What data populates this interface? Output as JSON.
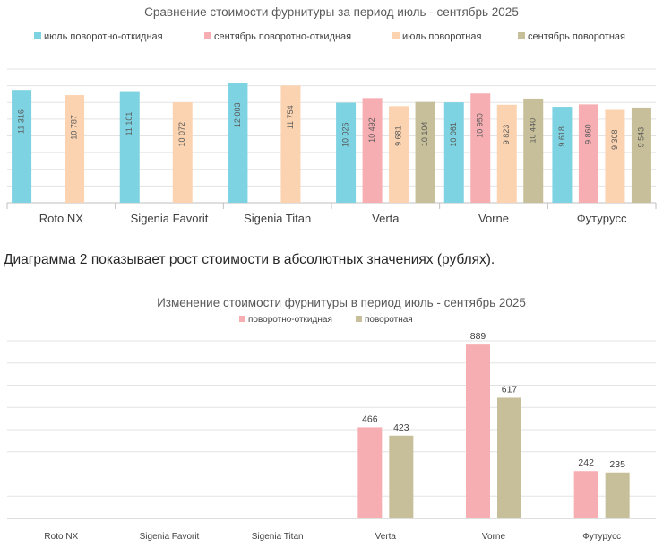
{
  "between_text": "Диаграмма 2 показывает рост стоимости в абсолютных значениях (рублях).",
  "chart_data": [
    {
      "type": "bar",
      "title": "Сравнение стоимости фурнитуры за период июль - сентябрь 2025",
      "categories": [
        "Roto NX",
        "Sigenia Favorit",
        "Sigenia Titan",
        "Verta",
        "Vorne",
        "Футуpycc"
      ],
      "series": [
        {
          "name": "июль поворотно-откидная",
          "color": "#7dd3e1",
          "values": [
            11316,
            11101,
            12003,
            10026,
            10061,
            9618
          ],
          "labels": [
            "11 316",
            "11 101",
            "12 003",
            "10 026",
            "10 061",
            "9 618"
          ]
        },
        {
          "name": "сентябрь поворотно-откидная",
          "color": "#f6aeb2",
          "values": [
            null,
            null,
            null,
            10492,
            10950,
            9860
          ],
          "labels": [
            "",
            "",
            "",
            "10 492",
            "10 950",
            "9 860"
          ]
        },
        {
          "name": "июль поворотная",
          "color": "#fbd3b0",
          "values": [
            10787,
            10072,
            11754,
            9681,
            9823,
            9308
          ],
          "labels": [
            "10 787",
            "10 072",
            "11 754",
            "9 681",
            "9 823",
            "9 308"
          ]
        },
        {
          "name": "сентябрь поворотная",
          "color": "#c7bf99",
          "values": [
            null,
            null,
            null,
            10104,
            10440,
            9543
          ],
          "labels": [
            "",
            "",
            "",
            "10 104",
            "10 440",
            "9 543"
          ]
        }
      ],
      "ylim": [
        0,
        13400
      ],
      "gridlines": 8,
      "grid": true,
      "legend": "top"
    },
    {
      "type": "bar",
      "title": "Изменение стоимости фурнитуры в период июль - сентябрь 2025",
      "categories": [
        "Roto NX",
        "Sigenia Favorit",
        "Sigenia Titan",
        "Verta",
        "Vorne",
        "Футуpycc"
      ],
      "series": [
        {
          "name": "поворотно-откидная",
          "color": "#f6aeb2",
          "values": [
            null,
            null,
            null,
            466,
            889,
            242
          ],
          "labels": [
            "",
            "",
            "",
            "466",
            "889",
            "242"
          ]
        },
        {
          "name": "поворотная",
          "color": "#c7bf99",
          "values": [
            null,
            null,
            null,
            423,
            617,
            235
          ],
          "labels": [
            "",
            "",
            "",
            "423",
            "617",
            "235"
          ]
        }
      ],
      "ylim": [
        0,
        908
      ],
      "gridlines": 8,
      "grid": true,
      "legend": "top"
    }
  ]
}
